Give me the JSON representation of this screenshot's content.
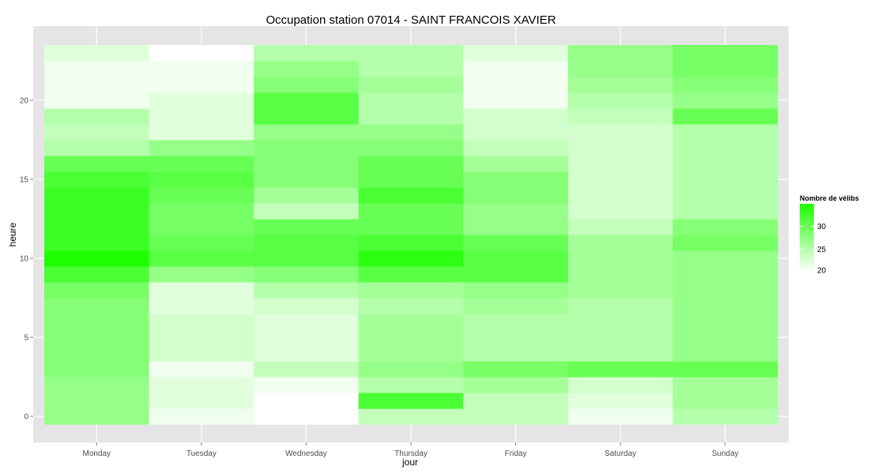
{
  "chart_data": {
    "type": "heatmap",
    "title": "Occupation station 07014 - SAINT FRANCOIS XAVIER",
    "xlabel": "jour",
    "ylabel": "heure",
    "categories": [
      "Monday",
      "Tuesday",
      "Wednesday",
      "Thursday",
      "Friday",
      "Saturday",
      "Sunday"
    ],
    "y_values": [
      0,
      1,
      2,
      3,
      4,
      5,
      6,
      7,
      8,
      9,
      10,
      11,
      12,
      13,
      14,
      15,
      16,
      17,
      18,
      19,
      20,
      21,
      22,
      23
    ],
    "y_ticks": [
      0,
      5,
      10,
      15,
      20
    ],
    "ylim": [
      -0.5,
      23.5
    ],
    "values": [
      [
        27,
        21,
        20,
        24,
        24,
        21,
        25
      ],
      [
        27,
        22,
        20,
        32,
        24,
        22,
        26
      ],
      [
        27,
        22,
        21,
        25,
        26,
        23,
        26
      ],
      [
        28,
        21,
        24,
        27,
        29,
        30,
        30
      ],
      [
        28,
        23,
        22,
        26,
        25,
        25,
        27
      ],
      [
        28,
        23,
        22,
        26,
        25,
        25,
        27
      ],
      [
        28,
        23,
        22,
        26,
        25,
        25,
        27
      ],
      [
        28,
        22,
        23,
        25,
        26,
        25,
        27
      ],
      [
        29,
        22,
        25,
        26,
        27,
        26,
        27
      ],
      [
        32,
        27,
        28,
        31,
        31,
        26,
        27
      ],
      [
        35,
        31,
        31,
        34,
        31,
        26,
        27
      ],
      [
        33,
        30,
        31,
        32,
        30,
        26,
        29
      ],
      [
        33,
        29,
        30,
        30,
        27,
        24,
        28
      ],
      [
        33,
        29,
        24,
        30,
        27,
        23,
        25
      ],
      [
        33,
        30,
        26,
        32,
        28,
        23,
        25
      ],
      [
        32,
        31,
        28,
        30,
        28,
        23,
        25
      ],
      [
        30,
        30,
        28,
        30,
        26,
        23,
        25
      ],
      [
        25,
        27,
        28,
        28,
        24,
        23,
        25
      ],
      [
        24,
        22,
        27,
        27,
        23,
        23,
        25
      ],
      [
        25,
        22,
        31,
        25,
        23,
        24,
        30
      ],
      [
        21,
        22,
        31,
        25,
        21,
        25,
        27
      ],
      [
        21,
        21,
        28,
        26,
        21,
        26,
        28
      ],
      [
        21,
        21,
        27,
        25,
        21,
        27,
        29
      ],
      [
        22,
        20,
        25,
        25,
        22,
        27,
        29
      ]
    ],
    "grid": true,
    "legend": {
      "title": "Nombre de vélibs",
      "ticks": [
        20,
        25,
        30
      ],
      "range": [
        20,
        35
      ],
      "position": "right"
    },
    "colors": {
      "low": "#ffffff",
      "high": "#1dff00",
      "panel_background": "#e5e5e5",
      "grid": "#ffffff"
    }
  }
}
